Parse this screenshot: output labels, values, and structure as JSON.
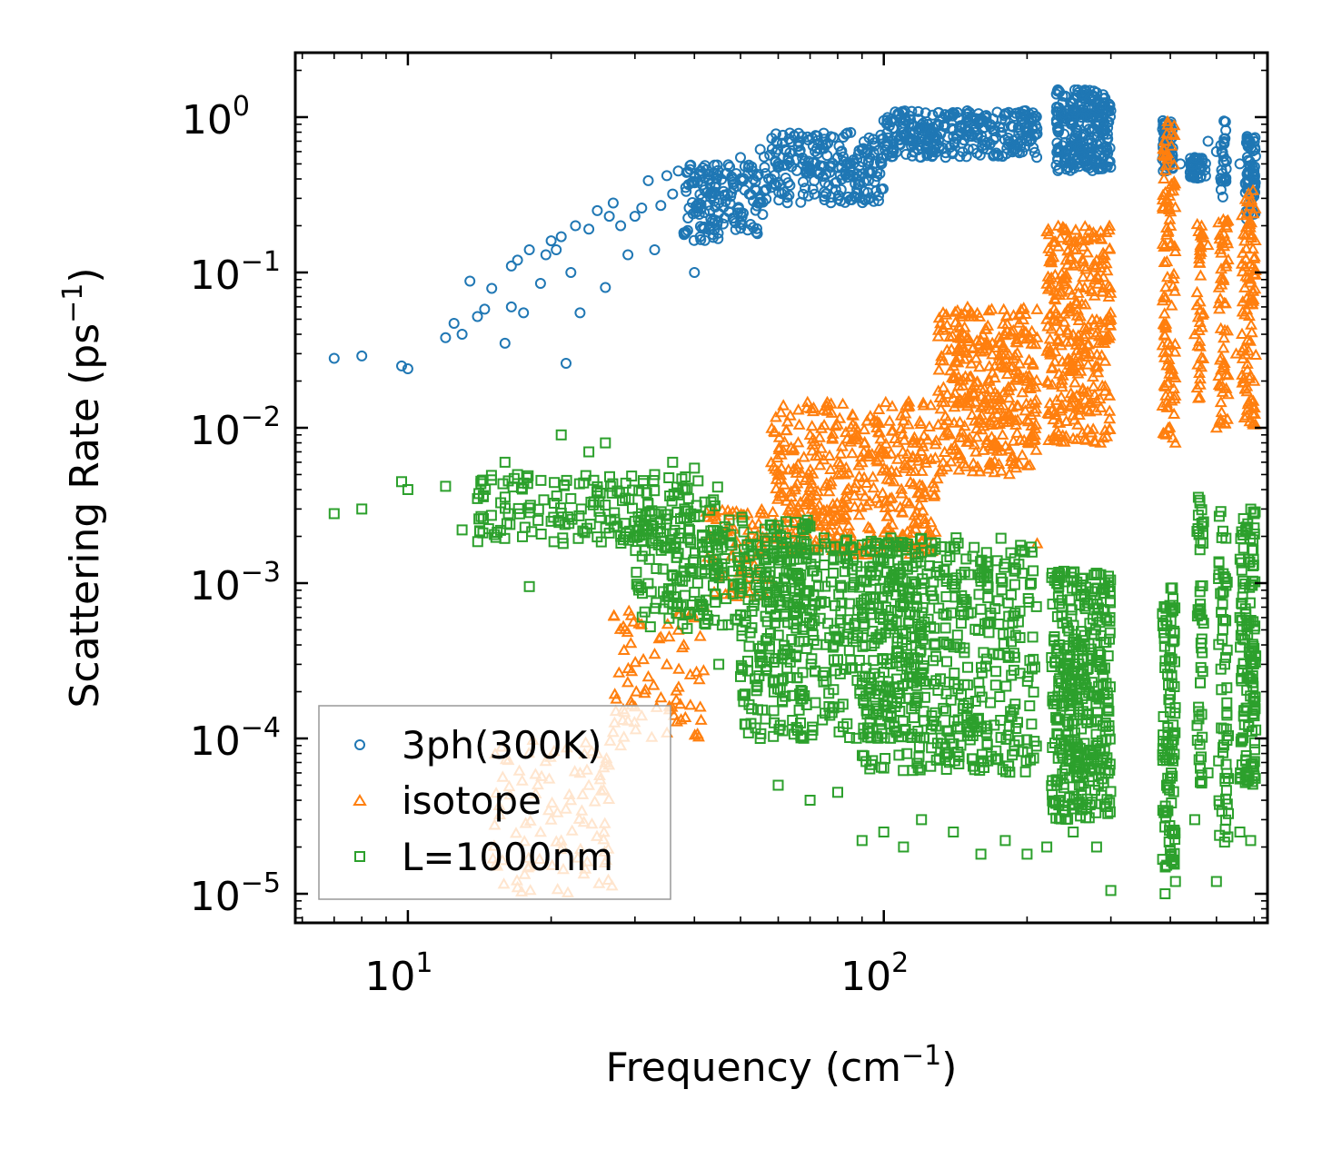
{
  "chart_data": {
    "type": "scatter",
    "xscale": "log",
    "yscale": "log",
    "xlabel": {
      "main": "Frequency (cm",
      "sup": "−1",
      "end": ")"
    },
    "ylabel": {
      "main": "Scattering Rate (ps",
      "sup": "−1",
      "end": ")"
    },
    "xlim": [
      5.8,
      640
    ],
    "ylim": [
      6.5e-06,
      2.6
    ],
    "xticks": [
      {
        "value": 10,
        "base": "10",
        "exp": "1"
      },
      {
        "value": 100,
        "base": "10",
        "exp": "2"
      }
    ],
    "yticks": [
      {
        "value": 1,
        "base": "10",
        "exp": "0"
      },
      {
        "value": 0.1,
        "base": "10",
        "exp": "−1"
      },
      {
        "value": 0.01,
        "base": "10",
        "exp": "−2"
      },
      {
        "value": 0.001,
        "base": "10",
        "exp": "−3"
      },
      {
        "value": 0.0001,
        "base": "10",
        "exp": "−4"
      },
      {
        "value": 1e-05,
        "base": "10",
        "exp": "−5"
      }
    ],
    "legend_position": "lower-left",
    "series": [
      {
        "name": "3ph(300K)",
        "marker": "circle",
        "color": "#1f77b4",
        "points": [
          [
            7,
            0.028
          ],
          [
            8,
            0.029
          ],
          [
            9.7,
            0.025
          ],
          [
            10,
            0.024
          ],
          [
            12,
            0.038
          ],
          [
            12.5,
            0.047
          ],
          [
            13,
            0.04
          ],
          [
            13.5,
            0.088
          ],
          [
            14,
            0.052
          ],
          [
            14.5,
            0.058
          ],
          [
            15,
            0.079
          ],
          [
            16,
            0.035
          ],
          [
            16.5,
            0.06
          ],
          [
            16.5,
            0.11
          ],
          [
            17,
            0.12
          ],
          [
            17.5,
            0.055
          ],
          [
            18,
            0.14
          ],
          [
            19,
            0.085
          ],
          [
            19.5,
            0.13
          ],
          [
            20,
            0.16
          ],
          [
            20.5,
            0.14
          ],
          [
            21,
            0.17
          ],
          [
            21.5,
            0.026
          ],
          [
            22,
            0.1
          ],
          [
            22.5,
            0.2
          ],
          [
            23,
            0.055
          ],
          [
            24,
            0.19
          ],
          [
            25,
            0.25
          ],
          [
            26,
            0.08
          ],
          [
            26.5,
            0.23
          ],
          [
            27,
            0.28
          ],
          [
            28,
            0.2
          ],
          [
            29,
            0.13
          ],
          [
            30,
            0.23
          ],
          [
            31,
            0.26
          ],
          [
            32,
            0.39
          ],
          [
            33,
            0.14
          ],
          [
            34,
            0.27
          ],
          [
            35,
            0.42
          ],
          [
            36,
            0.32
          ],
          [
            37,
            0.45
          ],
          [
            38,
            0.18
          ],
          [
            39,
            0.26
          ],
          [
            40,
            0.1
          ],
          [
            42,
            0.34
          ],
          [
            45,
            0.28
          ],
          [
            48,
            0.4
          ],
          [
            50,
            0.55
          ],
          [
            53,
            0.45
          ],
          [
            55,
            0.62
          ],
          [
            58,
            0.4
          ],
          [
            60,
            0.5
          ],
          [
            63,
            0.55
          ],
          [
            65,
            0.75
          ],
          [
            70,
            0.45
          ],
          [
            75,
            0.33
          ],
          [
            80,
            0.55
          ],
          [
            85,
            0.45
          ],
          [
            90,
            0.62
          ],
          [
            95,
            0.72
          ],
          [
            100,
            0.95
          ],
          [
            105,
            0.85
          ],
          [
            110,
            0.8
          ],
          [
            120,
            0.85
          ],
          [
            130,
            0.9
          ],
          [
            140,
            0.75
          ],
          [
            150,
            0.95
          ],
          [
            160,
            0.95
          ],
          [
            170,
            0.82
          ],
          [
            180,
            0.95
          ],
          [
            190,
            0.72
          ],
          [
            200,
            0.75
          ],
          [
            210,
            0.78
          ],
          [
            235,
            0.6
          ],
          [
            250,
            0.9
          ],
          [
            260,
            1.0
          ],
          [
            270,
            1.3
          ],
          [
            280,
            1.2
          ],
          [
            290,
            0.9
          ],
          [
            300,
            1.1
          ],
          [
            390,
            0.7
          ],
          [
            400,
            0.9
          ],
          [
            420,
            0.5
          ],
          [
            450,
            0.55
          ],
          [
            480,
            0.7
          ],
          [
            500,
            0.6
          ],
          [
            520,
            0.4
          ],
          [
            560,
            0.5
          ],
          [
            580,
            0.75
          ],
          [
            600,
            0.38
          ]
        ],
        "bands": [
          {
            "x": [
              38,
              56
            ],
            "y": [
              0.16,
              0.5
            ],
            "n": 160
          },
          {
            "x": [
              56,
              100
            ],
            "y": [
              0.28,
              0.8
            ],
            "n": 220
          },
          {
            "x": [
              100,
              210
            ],
            "y": [
              0.55,
              1.1
            ],
            "n": 300
          },
          {
            "x": [
              230,
              300
            ],
            "y": [
              0.45,
              1.5
            ],
            "n": 260
          },
          {
            "x": [
              385,
              405
            ],
            "y": [
              0.45,
              0.95
            ],
            "n": 60
          },
          {
            "x": [
              440,
              475
            ],
            "y": [
              0.4,
              0.55
            ],
            "n": 40
          },
          {
            "x": [
              510,
              525
            ],
            "y": [
              0.3,
              0.95
            ],
            "n": 30
          },
          {
            "x": [
              575,
              605
            ],
            "y": [
              0.22,
              0.75
            ],
            "n": 70
          }
        ]
      },
      {
        "name": "isotope",
        "marker": "triangle",
        "color": "#ff7f0e",
        "points": [
          [
            17,
            1.1e-05
          ],
          [
            18,
            1.5e-05
          ],
          [
            19,
            2.5e-05
          ],
          [
            20,
            3e-05
          ],
          [
            21,
            2.2e-05
          ],
          [
            22,
            4e-05
          ],
          [
            23,
            6e-05
          ],
          [
            24,
            5e-05
          ],
          [
            25,
            8e-05
          ],
          [
            26,
            7e-05
          ],
          [
            27,
            0.00011
          ],
          [
            28,
            9e-05
          ],
          [
            29,
            0.00013
          ],
          [
            30,
            0.00016
          ],
          [
            31,
            0.00014
          ],
          [
            32,
            0.00025
          ],
          [
            33,
            0.00035
          ],
          [
            34,
            0.00045
          ],
          [
            35,
            0.0003
          ],
          [
            37,
            0.0005
          ],
          [
            38,
            0.0004
          ],
          [
            40,
            0.0006
          ],
          [
            42,
            0.0007
          ],
          [
            45,
            0.0011
          ],
          [
            48,
            0.0015
          ],
          [
            52,
            0.0022
          ],
          [
            56,
            0.0028
          ],
          [
            60,
            0.005
          ],
          [
            65,
            0.004
          ],
          [
            70,
            0.009
          ],
          [
            80,
            0.005
          ],
          [
            90,
            0.006
          ],
          [
            100,
            0.007
          ],
          [
            120,
            0.008
          ],
          [
            140,
            0.025
          ],
          [
            160,
            0.018
          ],
          [
            180,
            0.03
          ],
          [
            200,
            0.02
          ],
          [
            210,
            0.0018
          ],
          [
            220,
            0.05
          ],
          [
            250,
            0.025
          ],
          [
            280,
            0.12
          ],
          [
            300,
            0.05
          ],
          [
            390,
            0.7
          ],
          [
            400,
            0.15
          ],
          [
            410,
            0.008
          ],
          [
            450,
            0.04
          ],
          [
            480,
            0.15
          ],
          [
            500,
            0.01
          ],
          [
            550,
            0.03
          ],
          [
            600,
            0.02
          ]
        ],
        "bands": [
          {
            "x": [
              15,
              27
            ],
            "y": [
              1e-05,
              0.0001
            ],
            "n": 90
          },
          {
            "x": [
              27,
              42
            ],
            "y": [
              0.0001,
              0.0007
            ],
            "n": 70
          },
          {
            "x": [
              42,
              58
            ],
            "y": [
              0.0008,
              0.003
            ],
            "n": 70
          },
          {
            "x": [
              58,
              130
            ],
            "y": [
              0.0015,
              0.015
            ],
            "n": 420
          },
          {
            "x": [
              130,
              210
            ],
            "y": [
              0.005,
              0.06
            ],
            "n": 360
          },
          {
            "x": [
              220,
              300
            ],
            "y": [
              0.008,
              0.2
            ],
            "n": 320
          },
          {
            "x": [
              385,
              410
            ],
            "y": [
              0.008,
              1
            ],
            "n": 110
          },
          {
            "x": [
              455,
              470
            ],
            "y": [
              0.015,
              0.25
            ],
            "n": 40
          },
          {
            "x": [
              505,
              530
            ],
            "y": [
              0.01,
              0.22
            ],
            "n": 60
          },
          {
            "x": [
              565,
              605
            ],
            "y": [
              0.01,
              0.35
            ],
            "n": 100
          }
        ]
      },
      {
        "name": "L=1000nm",
        "marker": "square",
        "color": "#2ca02c",
        "points": [
          [
            7,
            0.0028
          ],
          [
            8,
            0.003
          ],
          [
            9.7,
            0.0045
          ],
          [
            10,
            0.004
          ],
          [
            12,
            0.0042
          ],
          [
            13,
            0.0022
          ],
          [
            14,
            0.0035
          ],
          [
            16,
            0.006
          ],
          [
            17,
            0.005
          ],
          [
            18,
            0.00095
          ],
          [
            20,
            0.0025
          ],
          [
            21,
            0.009
          ],
          [
            22,
            0.0035
          ],
          [
            24,
            0.007
          ],
          [
            26,
            0.008
          ],
          [
            28,
            0.002
          ],
          [
            30,
            0.0025
          ],
          [
            33,
            0.005
          ],
          [
            36,
            0.006
          ],
          [
            38,
            0.0012
          ],
          [
            40,
            0.0055
          ],
          [
            45,
            0.0003
          ],
          [
            50,
            0.00025
          ],
          [
            55,
            0.0001
          ],
          [
            60,
            5e-05
          ],
          [
            70,
            4e-05
          ],
          [
            80,
            4.5e-05
          ],
          [
            90,
            2.2e-05
          ],
          [
            100,
            2.5e-05
          ],
          [
            110,
            2e-05
          ],
          [
            120,
            3e-05
          ],
          [
            140,
            2.5e-05
          ],
          [
            160,
            1.8e-05
          ],
          [
            180,
            2.2e-05
          ],
          [
            200,
            1.8e-05
          ],
          [
            220,
            2e-05
          ],
          [
            250,
            2.5e-05
          ],
          [
            280,
            2e-05
          ],
          [
            300,
            1.05e-05
          ],
          [
            390,
            1e-05
          ],
          [
            410,
            1.2e-05
          ],
          [
            450,
            3e-05
          ],
          [
            480,
            6e-05
          ],
          [
            500,
            1.2e-05
          ],
          [
            560,
            2.5e-05
          ],
          [
            590,
            2.2e-05
          ]
        ],
        "bands": [
          {
            "x": [
              14,
              45
            ],
            "y": [
              0.0018,
              0.005
            ],
            "n": 180
          },
          {
            "x": [
              30,
              70
            ],
            "y": [
              0.0005,
              0.003
            ],
            "n": 260
          },
          {
            "x": [
              50,
              120
            ],
            "y": [
              0.0001,
              0.002
            ],
            "n": 420
          },
          {
            "x": [
              90,
              210
            ],
            "y": [
              6e-05,
              0.002
            ],
            "n": 480
          },
          {
            "x": [
              225,
              300
            ],
            "y": [
              3e-05,
              0.0012
            ],
            "n": 380
          },
          {
            "x": [
              385,
              410
            ],
            "y": [
              1.4e-05,
              0.001
            ],
            "n": 110
          },
          {
            "x": [
              455,
              470
            ],
            "y": [
              5e-05,
              0.004
            ],
            "n": 50
          },
          {
            "x": [
              505,
              530
            ],
            "y": [
              2e-05,
              0.003
            ],
            "n": 60
          },
          {
            "x": [
              560,
              605
            ],
            "y": [
              5e-05,
              0.003
            ],
            "n": 140
          }
        ]
      }
    ]
  }
}
